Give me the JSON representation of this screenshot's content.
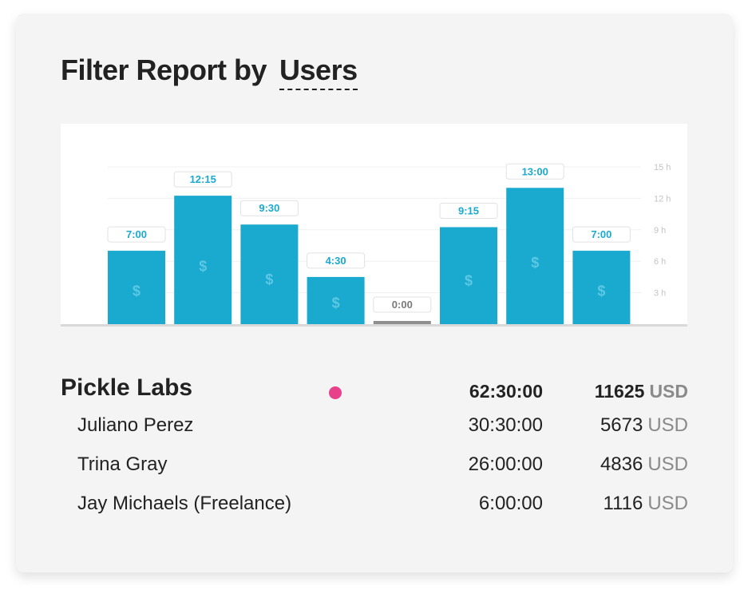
{
  "header": {
    "title_prefix": "Filter Report by",
    "filter_value": "Users"
  },
  "chart_data": {
    "type": "bar",
    "categories": [
      "",
      "",
      "",
      "",
      "",
      "",
      "",
      ""
    ],
    "values": [
      7.0,
      12.25,
      9.5,
      4.5,
      0,
      9.25,
      13.0,
      7.0
    ],
    "data_labels": [
      "7:00",
      "12:15",
      "9:30",
      "4:30",
      "0:00",
      "9:15",
      "13:00",
      "7:00"
    ],
    "bar_icon": "$",
    "y_ticks": [
      "3 h",
      "6 h",
      "9 h",
      "12 h",
      "15 h"
    ],
    "y_tick_values": [
      3,
      6,
      9,
      12,
      15
    ],
    "ylim": [
      0,
      15
    ],
    "grid": true,
    "colors": {
      "bar": "#1aa9cf",
      "bar_icon": "#5cc8e4",
      "label_text": "#1aa9cf",
      "zero_label_text": "#7a7a7a",
      "zero_bar": "#8f8f8f",
      "baseline": "#d9d9d9"
    }
  },
  "summary": {
    "company": {
      "name": "Pickle Labs",
      "dot_color": "#e8408a",
      "time": "62:30:00",
      "amount": "11625",
      "currency": "USD"
    },
    "users": [
      {
        "name": "Juliano Perez",
        "time": "30:30:00",
        "amount": "5673",
        "currency": "USD"
      },
      {
        "name": "Trina Gray",
        "time": "26:00:00",
        "amount": "4836",
        "currency": "USD"
      },
      {
        "name": "Jay Michaels (Freelance)",
        "time": "6:00:00",
        "amount": "1116",
        "currency": "USD"
      }
    ]
  }
}
